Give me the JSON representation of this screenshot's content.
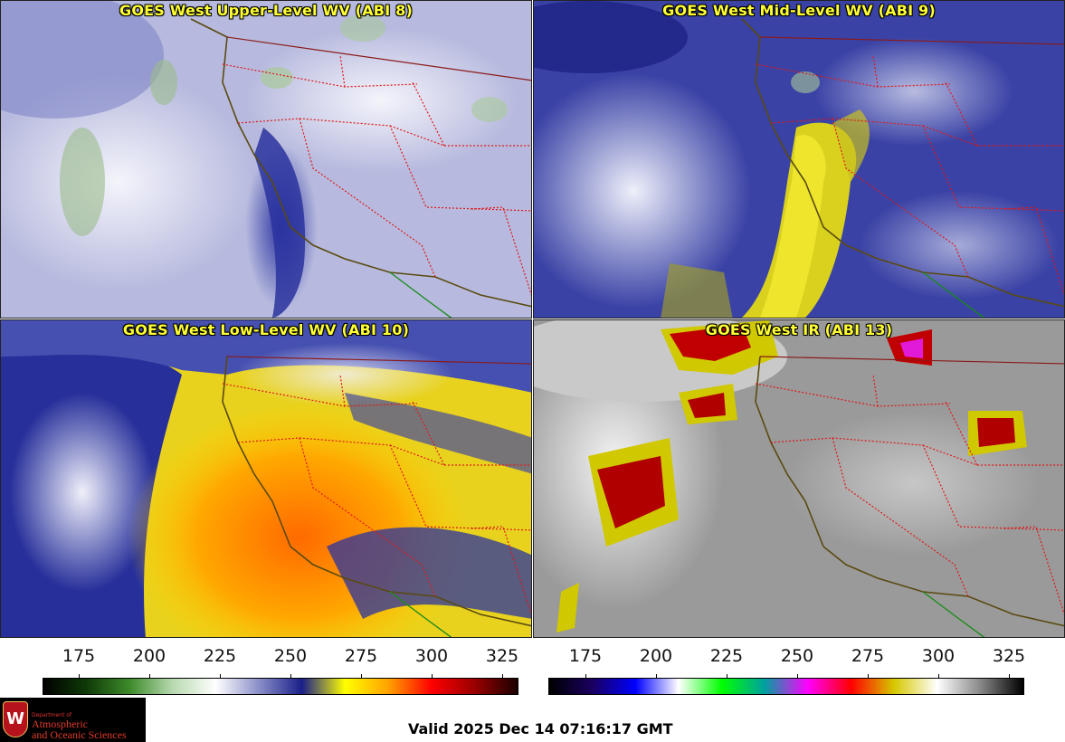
{
  "panels": [
    {
      "title": "GOES West Upper-Level WV (ABI 8)",
      "base": "#b9bcdf"
    },
    {
      "title": "GOES West Mid-Level WV (ABI 9)",
      "base": "#3b43a6"
    },
    {
      "title": "GOES West Low-Level WV (ABI 10)",
      "base": "#e8d21e"
    },
    {
      "title": "GOES West IR (ABI 13)",
      "base": "#9a9a9a"
    }
  ],
  "colorbar_wv": {
    "ticks": [
      "175",
      "200",
      "225",
      "250",
      "275",
      "300",
      "325"
    ],
    "gradient": [
      "#000000",
      "#0f3a08",
      "#3d8a2a",
      "#b8dab0",
      "#ffffff",
      "#8a8ec8",
      "#1a1f88",
      "#ffff00",
      "#ffa200",
      "#ff0000",
      "#9a0000",
      "#1a0000"
    ]
  },
  "colorbar_ir": {
    "ticks": [
      "175",
      "200",
      "225",
      "250",
      "275",
      "300",
      "325"
    ],
    "gradient": [
      "#000000",
      "#1a0060",
      "#0000ff",
      "#ffffff",
      "#00ff00",
      "#00a0a0",
      "#ff00ff",
      "#ff0000",
      "#d6c800",
      "#ffffff",
      "#888888",
      "#000000"
    ]
  },
  "logo": {
    "line1": "Department of",
    "line2": "Atmospheric",
    "line3": "and Oceanic Sciences"
  },
  "valid_text": "Valid 2025 Dec 14 07:16:17 GMT"
}
